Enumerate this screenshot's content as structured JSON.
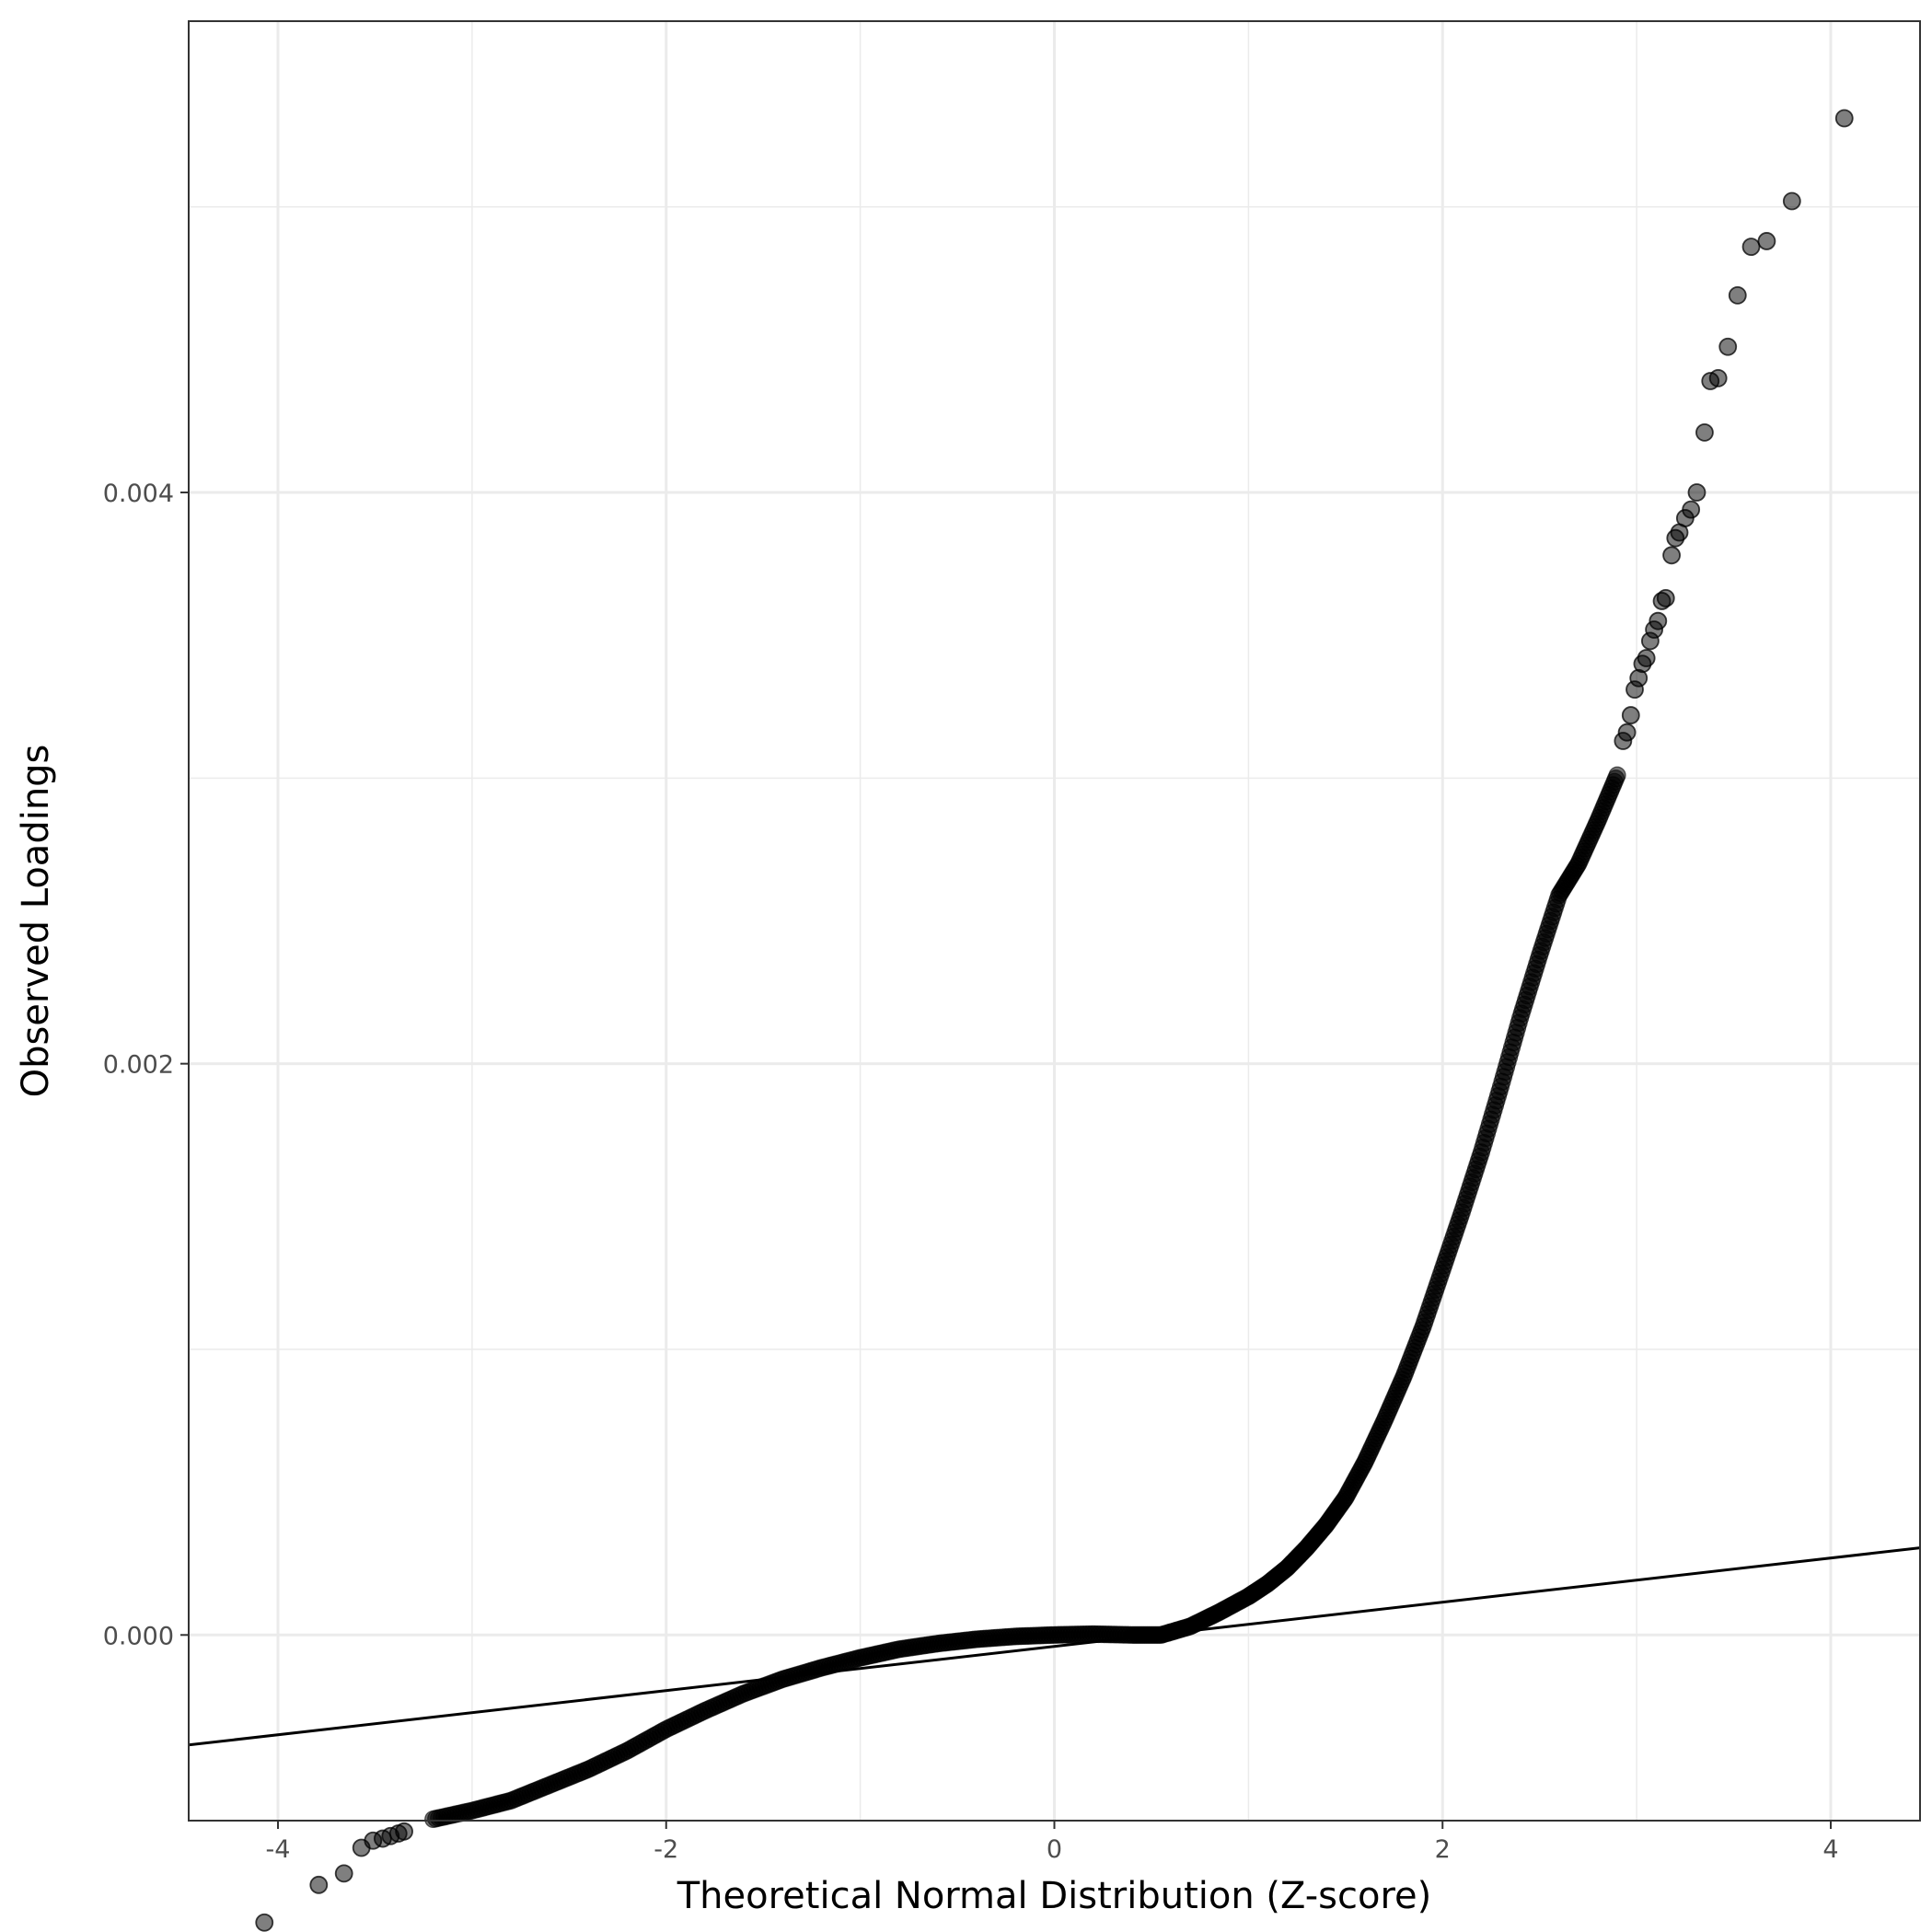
{
  "chart_data": {
    "type": "scatter",
    "title": "",
    "xlabel": "Theoretical Normal Distribution (Z-score)",
    "ylabel": "Observed Loadings",
    "xlim": [
      -4.46,
      4.46
    ],
    "ylim": [
      -0.00065,
      0.00565
    ],
    "x_ticks": [
      -4,
      -2,
      0,
      2,
      4
    ],
    "x_tick_labels": [
      "-4",
      "-2",
      "0",
      "2",
      "4"
    ],
    "y_ticks": [
      0.0,
      0.002,
      0.004
    ],
    "y_tick_labels": [
      "0.000",
      "0.002",
      "0.004"
    ],
    "grid": true,
    "reference_line": {
      "x": [
        -4.46,
        4.46
      ],
      "y": [
        -0.000385,
        0.000305
      ]
    },
    "quantile_curve": {
      "x": [
        -3.2,
        -3.0,
        -2.8,
        -2.6,
        -2.4,
        -2.2,
        -2.0,
        -1.8,
        -1.6,
        -1.4,
        -1.2,
        -1.0,
        -0.8,
        -0.6,
        -0.4,
        -0.2,
        0.0,
        0.2,
        0.4,
        0.55,
        0.7,
        0.85,
        1.0,
        1.1,
        1.2,
        1.3,
        1.4,
        1.5,
        1.6,
        1.7,
        1.8,
        1.9,
        2.0,
        2.1,
        2.2,
        2.3,
        2.4,
        2.5,
        2.6,
        2.7,
        2.8,
        2.9
      ],
      "y": [
        -0.000645,
        -0.000615,
        -0.00058,
        -0.000525,
        -0.00047,
        -0.000405,
        -0.00033,
        -0.000265,
        -0.000205,
        -0.000155,
        -0.000115,
        -8e-05,
        -5e-05,
        -3e-05,
        -1.5e-05,
        -5e-06,
        0.0,
        3e-06,
        0.0,
        0.0,
        3e-05,
        8e-05,
        0.000135,
        0.00018,
        0.000235,
        0.000305,
        0.000385,
        0.00048,
        0.000605,
        0.00075,
        0.000905,
        0.00108,
        0.00128,
        0.00148,
        0.00169,
        0.00192,
        0.00216,
        0.00238,
        0.00259,
        0.0027,
        0.00285,
        0.00301
      ]
    },
    "tail_points": {
      "x": [
        -4.07,
        -3.79,
        -3.66,
        -3.57,
        -3.51,
        -3.46,
        -3.42,
        -3.38,
        -3.35,
        2.93,
        2.95,
        2.97,
        2.99,
        3.01,
        3.03,
        3.05,
        3.07,
        3.09,
        3.11,
        3.13,
        3.15,
        3.18,
        3.2,
        3.22,
        3.25,
        3.28,
        3.31,
        3.35,
        3.38,
        3.42,
        3.47,
        3.52,
        3.59,
        3.67,
        3.8,
        4.07
      ],
      "y": [
        -0.001007,
        -0.000875,
        -0.000835,
        -0.000745,
        -0.00072,
        -0.000713,
        -0.000704,
        -0.000695,
        -0.000688,
        0.00313,
        0.00316,
        0.00322,
        0.00331,
        0.00335,
        0.0034,
        0.00342,
        0.00348,
        0.00352,
        0.00355,
        0.00362,
        0.00363,
        0.00378,
        0.00384,
        0.00386,
        0.00391,
        0.00394,
        0.004,
        0.00421,
        0.00439,
        0.0044,
        0.00451,
        0.00469,
        0.00486,
        0.00488,
        0.00502,
        0.00531
      ]
    }
  }
}
